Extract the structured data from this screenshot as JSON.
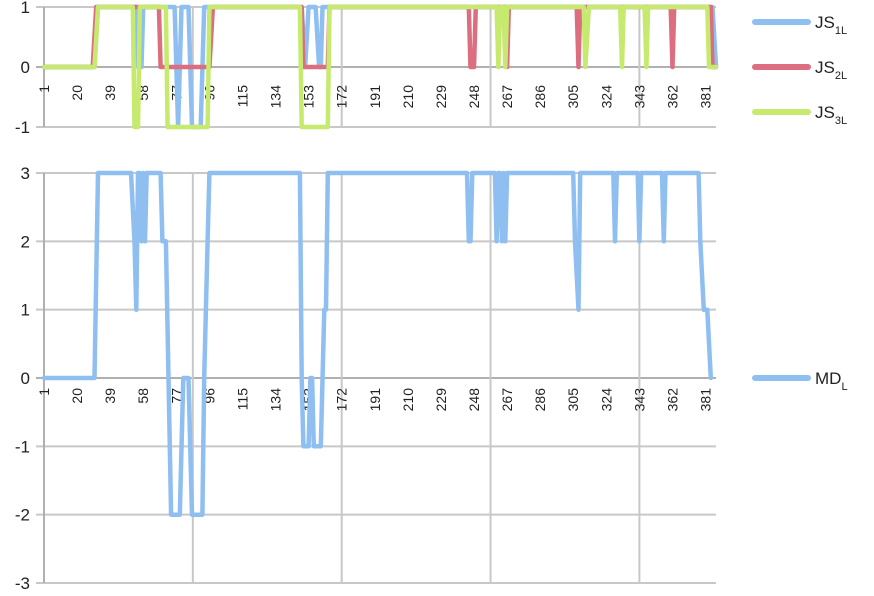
{
  "chart_data": [
    {
      "type": "line",
      "title": "",
      "xlabel": "",
      "ylabel": "",
      "ylim": [
        -1,
        1
      ],
      "y_ticks": [
        "1",
        "0",
        "-1"
      ],
      "x_ticks": [
        "1",
        "20",
        "39",
        "58",
        "77",
        "96",
        "115",
        "134",
        "153",
        "172",
        "191",
        "210",
        "229",
        "248",
        "267",
        "286",
        "305",
        "324",
        "343",
        "362",
        "381"
      ],
      "xlim": [
        1,
        387
      ],
      "grid": true,
      "legend_position": "right",
      "series": [
        {
          "name": "JS",
          "subscript": "1L",
          "color": "#8fbff0",
          "points": [
            [
              1,
              0
            ],
            [
              30,
              0
            ],
            [
              32,
              1
            ],
            [
              54,
              1
            ],
            [
              55,
              0
            ],
            [
              57,
              0
            ],
            [
              58,
              1
            ],
            [
              76,
              1
            ],
            [
              78,
              -1
            ],
            [
              80,
              1
            ],
            [
              84,
              1
            ],
            [
              86,
              -1
            ],
            [
              91,
              -1
            ],
            [
              93,
              1
            ],
            [
              149,
              1
            ],
            [
              151,
              0
            ],
            [
              153,
              1
            ],
            [
              157,
              1
            ],
            [
              159,
              0
            ],
            [
              160,
              0
            ],
            [
              161,
              1
            ],
            [
              385,
              1
            ],
            [
              387,
              0
            ]
          ]
        },
        {
          "name": "JS",
          "subscript": "2L",
          "color": "#dc6e7f",
          "points": [
            [
              1,
              0
            ],
            [
              29,
              0
            ],
            [
              31,
              1
            ],
            [
              67,
              1
            ],
            [
              68,
              0
            ],
            [
              96,
              0
            ],
            [
              98,
              1
            ],
            [
              149,
              1
            ],
            [
              150,
              0
            ],
            [
              164,
              0
            ],
            [
              165,
              1
            ],
            [
              245,
              1
            ],
            [
              246,
              0
            ],
            [
              248,
              0
            ],
            [
              249,
              1
            ],
            [
              266,
              1
            ],
            [
              267,
              0
            ],
            [
              268,
              1
            ],
            [
              307,
              1
            ],
            [
              308,
              0
            ],
            [
              309,
              1
            ],
            [
              361,
              1
            ],
            [
              362,
              0
            ],
            [
              363,
              1
            ],
            [
              384,
              1
            ],
            [
              385,
              0
            ],
            [
              387,
              0
            ]
          ]
        },
        {
          "name": "JS",
          "subscript": "3L",
          "color": "#c6ea6e",
          "points": [
            [
              1,
              0
            ],
            [
              30,
              0
            ],
            [
              32,
              1
            ],
            [
              52,
              1
            ],
            [
              53,
              -1
            ],
            [
              55,
              -1
            ],
            [
              56,
              1
            ],
            [
              71,
              1
            ],
            [
              72,
              -1
            ],
            [
              95,
              -1
            ],
            [
              96,
              1
            ],
            [
              148,
              1
            ],
            [
              149,
              -1
            ],
            [
              164,
              -1
            ],
            [
              165,
              1
            ],
            [
              261,
              1
            ],
            [
              262,
              0
            ],
            [
              263,
              1
            ],
            [
              265,
              1
            ],
            [
              266,
              0
            ],
            [
              267,
              1
            ],
            [
              311,
              1
            ],
            [
              312,
              0
            ],
            [
              314,
              1
            ],
            [
              332,
              1
            ],
            [
              333,
              0
            ],
            [
              334,
              1
            ],
            [
              346,
              1
            ],
            [
              347,
              0
            ],
            [
              348,
              1
            ],
            [
              382,
              1
            ],
            [
              383,
              0
            ],
            [
              387,
              0
            ]
          ]
        }
      ]
    },
    {
      "type": "line",
      "title": "",
      "xlabel": "",
      "ylabel": "",
      "ylim": [
        -3,
        3
      ],
      "y_ticks": [
        "3",
        "2",
        "1",
        "0",
        "-1",
        "-2",
        "-3"
      ],
      "x_ticks": [
        "1",
        "20",
        "39",
        "58",
        "77",
        "96",
        "115",
        "134",
        "153",
        "172",
        "191",
        "210",
        "229",
        "248",
        "267",
        "286",
        "305",
        "324",
        "343",
        "362",
        "381"
      ],
      "xlim": [
        1,
        387
      ],
      "grid": true,
      "legend_position": "right",
      "series": [
        {
          "name": "MD",
          "subscript": "L",
          "color": "#8fbff0",
          "points": [
            [
              1,
              0
            ],
            [
              30,
              0
            ],
            [
              32,
              3
            ],
            [
              51,
              3
            ],
            [
              53,
              2
            ],
            [
              54,
              1
            ],
            [
              55,
              3
            ],
            [
              56,
              3
            ],
            [
              57,
              2
            ],
            [
              58,
              3
            ],
            [
              59,
              2
            ],
            [
              60,
              3
            ],
            [
              68,
              3
            ],
            [
              69,
              2
            ],
            [
              71,
              2
            ],
            [
              74,
              -2
            ],
            [
              79,
              -2
            ],
            [
              81,
              0
            ],
            [
              84,
              0
            ],
            [
              86,
              -2
            ],
            [
              92,
              -2
            ],
            [
              93,
              0
            ],
            [
              95,
              2
            ],
            [
              96,
              3
            ],
            [
              148,
              3
            ],
            [
              149,
              0
            ],
            [
              150,
              -1
            ],
            [
              153,
              -1
            ],
            [
              154,
              0
            ],
            [
              155,
              0
            ],
            [
              156,
              -1
            ],
            [
              160,
              -1
            ],
            [
              162,
              1
            ],
            [
              163,
              1
            ],
            [
              164,
              3
            ],
            [
              244,
              3
            ],
            [
              245,
              2
            ],
            [
              246,
              2
            ],
            [
              247,
              3
            ],
            [
              260,
              3
            ],
            [
              261,
              2
            ],
            [
              262,
              3
            ],
            [
              263,
              3
            ],
            [
              264,
              2
            ],
            [
              265,
              3
            ],
            [
              266,
              2
            ],
            [
              267,
              3
            ],
            [
              305,
              3
            ],
            [
              306,
              2
            ],
            [
              308,
              1
            ],
            [
              309,
              3
            ],
            [
              328,
              3
            ],
            [
              329,
              2
            ],
            [
              330,
              3
            ],
            [
              342,
              3
            ],
            [
              343,
              2
            ],
            [
              344,
              3
            ],
            [
              356,
              3
            ],
            [
              357,
              2
            ],
            [
              358,
              3
            ],
            [
              377,
              3
            ],
            [
              378,
              2
            ],
            [
              380,
              1
            ],
            [
              381,
              1
            ],
            [
              382,
              1
            ],
            [
              384,
              0
            ]
          ]
        }
      ]
    }
  ]
}
